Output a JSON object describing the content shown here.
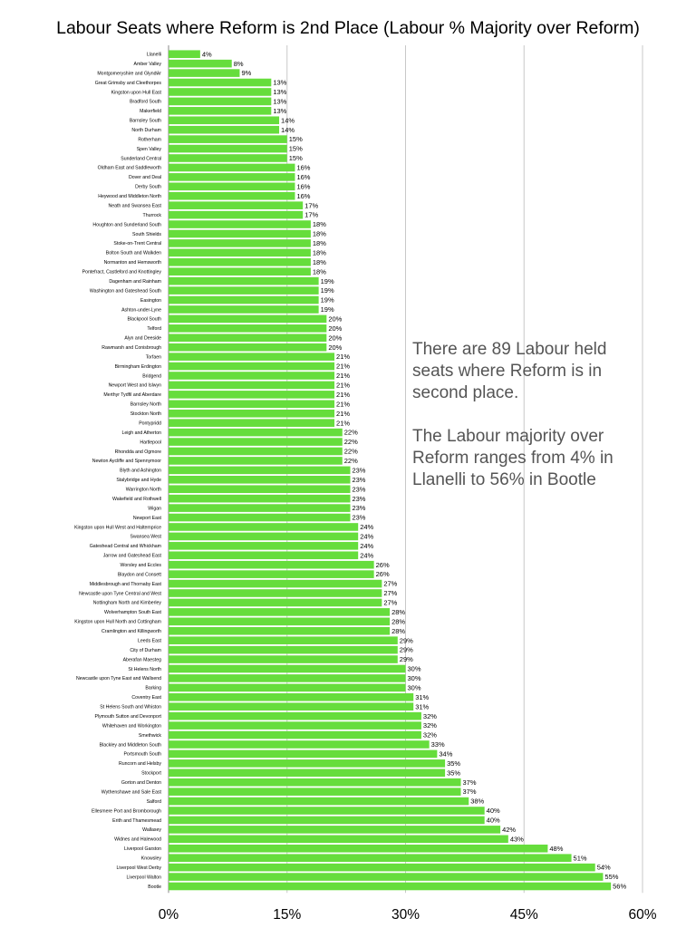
{
  "chart_data": {
    "type": "bar",
    "orientation": "horizontal",
    "title": "Labour Seats where Reform is 2nd Place (Labour % Majority over Reform)",
    "xlabel": "",
    "ylabel": "",
    "xlim": [
      0,
      60
    ],
    "x_ticks": [
      "0%",
      "15%",
      "30%",
      "45%",
      "60%"
    ],
    "grid": "vertical",
    "bar_color": "#66dd3c",
    "value_suffix": "%",
    "categories": [
      "Llanelli",
      "Amber Valley",
      "Montgomeryshire and Glyndŵr",
      "Great Grimsby and Cleethorpes",
      "Kingston upon Hull East",
      "Bradford South",
      "Makerfield",
      "Barnsley South",
      "North Durham",
      "Rotherham",
      "Spen Valley",
      "Sunderland Central",
      "Oldham East and Saddleworth",
      "Dover and Deal",
      "Derby South",
      "Heywood and Middleton North",
      "Neath and Swansea East",
      "Thurrock",
      "Houghton and Sunderland South",
      "South Shields",
      "Stoke-on-Trent Central",
      "Bolton South and Walkden",
      "Normanton and Hemsworth",
      "Pontefract, Castleford and Knottingley",
      "Dagenham and Rainham",
      "Washington and Gateshead South",
      "Easington",
      "Ashton-under-Lyne",
      "Blackpool South",
      "Telford",
      "Alyn and Deeside",
      "Rawmarsh and Conisbrough",
      "Torfaen",
      "Birmingham Erdington",
      "Bridgend",
      "Newport West and Islwyn",
      "Merthyr Tydfil and Aberdare",
      "Barnsley North",
      "Stockton North",
      "Pontypridd",
      "Leigh and Atherton",
      "Hartlepool",
      "Rhondda and Ogmore",
      "Newton Aycliffe and Spennymoor",
      "Blyth and Ashington",
      "Stalybridge and Hyde",
      "Warrington North",
      "Wakefield and Rothwell",
      "Wigan",
      "Newport East",
      "Kingston upon Hull West and Haltemprice",
      "Swansea West",
      "Gateshead Central and Whickham",
      "Jarrow and Gateshead East",
      "Worsley and Eccles",
      "Blaydon and Consett",
      "Middlesbrough and Thornaby East",
      "Newcastle upon Tyne Central and West",
      "Nottingham North and Kimberley",
      "Wolverhampton South East",
      "Kingston upon Hull North and Cottingham",
      "Cramlington and Killingworth",
      "Leeds East",
      "City of Durham",
      "Aberafan Maesteg",
      "St Helens North",
      "Newcastle upon Tyne East and Wallsend",
      "Barking",
      "Coventry East",
      "St Helens South and Whiston",
      "Plymouth Sutton and Devonport",
      "Whitehaven and Workington",
      "Smethwick",
      "Blackley and Middleton South",
      "Portsmouth South",
      "Runcorn and Helsby",
      "Stockport",
      "Gorton and Denton",
      "Wythenshawe and Sale East",
      "Salford",
      "Ellesmere Port and Bromborough",
      "Erith and Thamesmead",
      "Wallasey",
      "Widnes and Halewood",
      "Liverpool Garston",
      "Knowsley",
      "Liverpool West Derby",
      "Liverpool Walton",
      "Bootle"
    ],
    "values": [
      4,
      8,
      9,
      13,
      13,
      13,
      13,
      14,
      14,
      15,
      15,
      15,
      16,
      16,
      16,
      16,
      17,
      17,
      18,
      18,
      18,
      18,
      18,
      18,
      19,
      19,
      19,
      19,
      20,
      20,
      20,
      20,
      21,
      21,
      21,
      21,
      21,
      21,
      21,
      21,
      22,
      22,
      22,
      22,
      23,
      23,
      23,
      23,
      23,
      23,
      24,
      24,
      24,
      24,
      26,
      26,
      27,
      27,
      27,
      28,
      28,
      28,
      29,
      29,
      29,
      30,
      30,
      30,
      31,
      31,
      32,
      32,
      32,
      33,
      34,
      35,
      35,
      37,
      37,
      38,
      40,
      40,
      42,
      43,
      48,
      51,
      54,
      55,
      56
    ]
  },
  "annotation": {
    "paragraph1": "There are 89 Labour held seats where Reform is in second place.",
    "paragraph2": "The Labour majority over Reform ranges from 4% in Llanelli to 56% in Bootle"
  }
}
